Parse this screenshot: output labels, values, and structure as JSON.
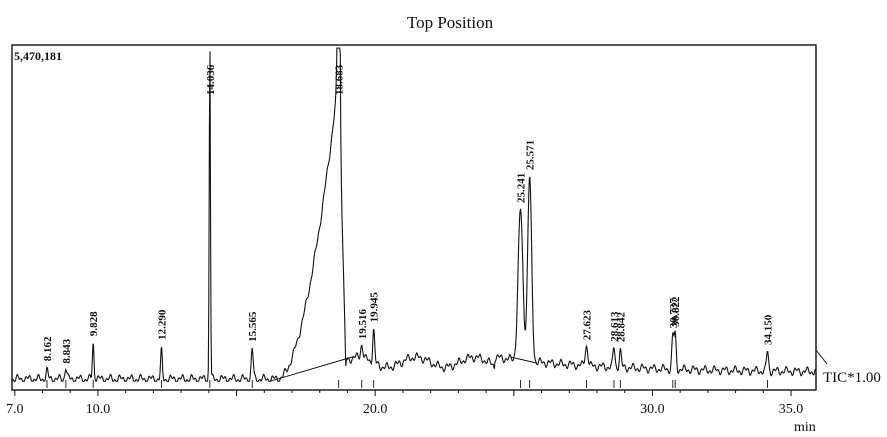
{
  "chart_data": {
    "type": "line",
    "title": "Top Position",
    "max_intensity_label": "5,470,181",
    "trace_label": "TIC*1.00",
    "xlabel": "min",
    "ylabel": "",
    "xlim": [
      6.9,
      35.9
    ],
    "ylim": [
      0,
      1.0
    ],
    "x_ticks": [
      7.0,
      10.0,
      20.0,
      30.0,
      35.0
    ],
    "x_tick_labels": [
      "7.0",
      "10.0",
      "20.0",
      "30.0",
      "35.0"
    ],
    "grid": false,
    "peaks": [
      {
        "rt": 8.162,
        "label": "8.162",
        "height": 0.025,
        "width": 0.05
      },
      {
        "rt": 8.843,
        "label": "8.843",
        "height": 0.035,
        "width": 0.05
      },
      {
        "rt": 9.828,
        "label": "9.828",
        "height": 0.11,
        "width": 0.04
      },
      {
        "rt": 12.29,
        "label": "12.290",
        "height": 0.085,
        "width": 0.04
      },
      {
        "rt": 14.036,
        "label": "14.036",
        "height": 1.0,
        "width": 0.03
      },
      {
        "rt": 15.565,
        "label": "15.565",
        "height": 0.09,
        "width": 0.05
      },
      {
        "rt": 18.683,
        "label": "18.683",
        "height": 0.97,
        "width": 0.05
      },
      {
        "rt": 19.516,
        "label": "19.516",
        "height": 0.04,
        "width": 0.06
      },
      {
        "rt": 19.945,
        "label": "19.945",
        "height": 0.1,
        "width": 0.05
      },
      {
        "rt": 25.241,
        "label": "25.241",
        "height": 0.45,
        "width": 0.12
      },
      {
        "rt": 25.571,
        "label": "25.571",
        "height": 0.55,
        "width": 0.1
      },
      {
        "rt": 27.623,
        "label": "27.623",
        "height": 0.06,
        "width": 0.07
      },
      {
        "rt": 28.613,
        "label": "28.613",
        "height": 0.06,
        "width": 0.05
      },
      {
        "rt": 28.842,
        "label": "28.842",
        "height": 0.05,
        "width": 0.05
      },
      {
        "rt": 30.737,
        "label": "30.737",
        "height": 0.1,
        "width": 0.05
      },
      {
        "rt": 30.822,
        "label": "30.822",
        "height": 0.1,
        "width": 0.05
      },
      {
        "rt": 34.15,
        "label": "34.150",
        "height": 0.06,
        "width": 0.05
      }
    ]
  }
}
